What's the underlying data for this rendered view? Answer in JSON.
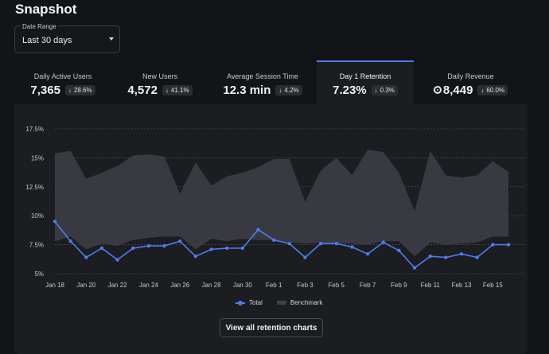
{
  "page": {
    "title": "Snapshot"
  },
  "date_range": {
    "label": "Date Range",
    "value": "Last 30 days"
  },
  "tabs": [
    {
      "label": "Daily Active Users",
      "value": "7,365",
      "delta": "28.6%",
      "icon": "",
      "active": false
    },
    {
      "label": "New Users",
      "value": "4,572",
      "delta": "41.1%",
      "icon": "",
      "active": false
    },
    {
      "label": "Average Session Time",
      "value": "12.3 min",
      "delta": "4.2%",
      "icon": "",
      "active": false
    },
    {
      "label": "Day 1 Retention",
      "value": "7.23%",
      "delta": "0.3%",
      "icon": "",
      "active": true
    },
    {
      "label": "Daily Revenue",
      "value": "8,449",
      "delta": "60.0%",
      "icon": "coin-icon",
      "active": false
    }
  ],
  "colors": {
    "accent": "#4f7bf0",
    "benchmark": "#3e4046",
    "background": "#131417",
    "panel": "#1c1d21"
  },
  "chart_data": {
    "type": "line",
    "x": [
      "Jan 18",
      "Jan 19",
      "Jan 20",
      "Jan 21",
      "Jan 22",
      "Jan 23",
      "Jan 24",
      "Jan 25",
      "Jan 26",
      "Jan 27",
      "Jan 28",
      "Jan 29",
      "Jan 30",
      "Jan 31",
      "Feb 1",
      "Feb 2",
      "Feb 3",
      "Feb 4",
      "Feb 5",
      "Feb 6",
      "Feb 7",
      "Feb 8",
      "Feb 9",
      "Feb 10",
      "Feb 11",
      "Feb 12",
      "Feb 13",
      "Feb 14",
      "Feb 15",
      "Feb 16"
    ],
    "tick_labels": [
      "Jan 18",
      "Jan 20",
      "Jan 22",
      "Jan 24",
      "Jan 26",
      "Jan 28",
      "Jan 30",
      "Feb 1",
      "Feb 3",
      "Feb 5",
      "Feb 7",
      "Feb 9",
      "Feb 11",
      "Feb 13",
      "Feb 15"
    ],
    "y_ticks": [
      "5%",
      "7.5%",
      "10%",
      "12.5%",
      "15%",
      "17.5%"
    ],
    "ylim": [
      5,
      17.5
    ],
    "grid": true,
    "legend_position": "bottom",
    "series": [
      {
        "name": "Total",
        "values": [
          9.5,
          7.8,
          6.4,
          7.2,
          6.2,
          7.2,
          7.4,
          7.4,
          7.8,
          6.5,
          7.1,
          7.2,
          7.2,
          8.8,
          7.9,
          7.6,
          6.4,
          7.6,
          7.6,
          7.3,
          6.7,
          7.7,
          7.0,
          5.5,
          6.5,
          6.4,
          6.7,
          6.4,
          7.5,
          7.5
        ]
      },
      {
        "name": "Benchmark",
        "lower": [
          7.8,
          8.2,
          7.1,
          7.6,
          7.4,
          7.9,
          8.1,
          8.2,
          8.2,
          7.1,
          8.0,
          7.8,
          8.0,
          7.9,
          7.9,
          7.7,
          7.6,
          7.7,
          7.6,
          7.6,
          7.5,
          7.8,
          7.8,
          6.5,
          7.7,
          7.5,
          7.6,
          7.7,
          8.2,
          8.2
        ],
        "upper": [
          15.4,
          15.6,
          13.2,
          13.7,
          14.3,
          15.2,
          15.3,
          15.1,
          11.9,
          14.6,
          12.6,
          13.4,
          13.7,
          14.2,
          14.9,
          14.9,
          11.2,
          13.9,
          15.0,
          13.5,
          15.7,
          15.5,
          13.7,
          10.4,
          15.6,
          13.5,
          13.3,
          13.5,
          14.7,
          13.8
        ]
      }
    ]
  },
  "legend": {
    "total": "Total",
    "benchmark": "Benchmark"
  },
  "cta": {
    "label": "View all retention charts"
  }
}
